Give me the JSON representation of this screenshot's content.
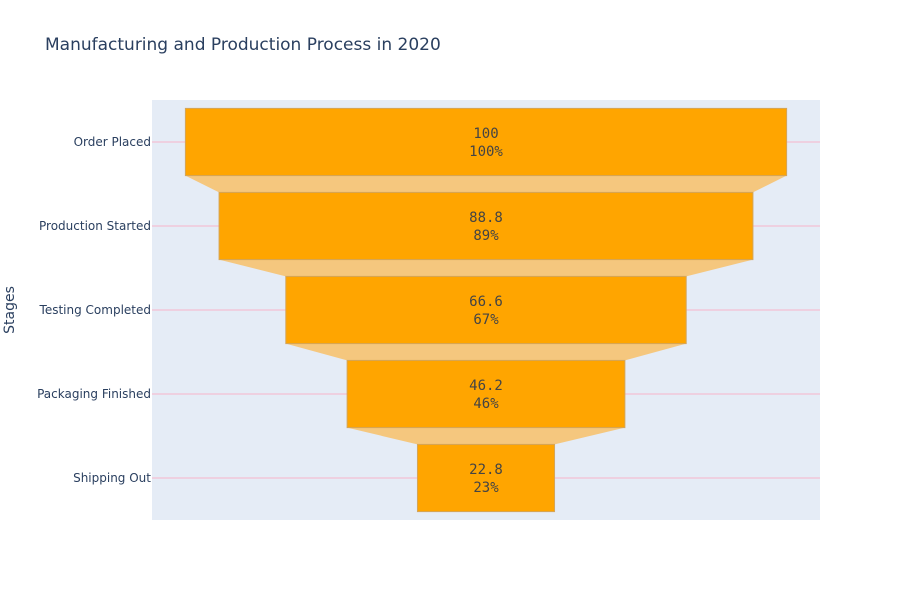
{
  "chart_data": {
    "type": "funnel",
    "title": "Manufacturing and Production Process in 2020",
    "ylabel": "Stages",
    "categories": [
      "Order Placed",
      "Production Started",
      "Testing Completed",
      "Packaging Finished",
      "Shipping Out"
    ],
    "values": [
      100,
      88.8,
      66.6,
      46.2,
      22.8
    ],
    "percent_labels": [
      "100%",
      "89%",
      "67%",
      "46%",
      "23%"
    ],
    "value_labels": [
      "100",
      "88.8",
      "66.6",
      "46.2",
      "22.8"
    ],
    "colors": {
      "bar": "#ffa500",
      "bar_border": "#d4a55a",
      "connector": "#f5c77e",
      "plot_bg": "#e5ecf6",
      "gridline": "#f2c6d8"
    }
  }
}
